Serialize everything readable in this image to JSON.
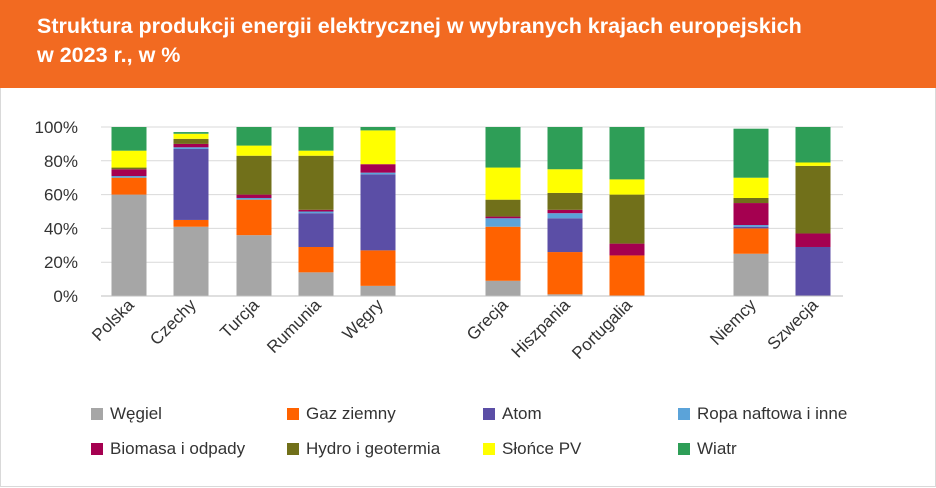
{
  "header": {
    "title_line1": "Struktura produkcji energii elektrycznej w wybranych krajach europejskich",
    "title_line2": "w 2023 r., w %"
  },
  "chart_data": {
    "type": "bar",
    "stacked": true,
    "title": "Struktura produkcji energii elektrycznej w wybranych krajach europejskich w 2023 r., w %",
    "xlabel": "",
    "ylabel": "",
    "ylim": [
      0,
      100
    ],
    "yticks": [
      "0%",
      "20%",
      "40%",
      "60%",
      "80%",
      "100%"
    ],
    "grid": true,
    "legend_position": "bottom",
    "categories": [
      "Polska",
      "Czechy",
      "Turcja",
      "Rumunia",
      "Węgry",
      "Grecja",
      "Hiszpania",
      "Portugalia",
      "Niemcy",
      "Szwecja"
    ],
    "series": [
      {
        "name": "Węgiel",
        "color": "#a6a6a6",
        "values": [
          60,
          41,
          36,
          14,
          6,
          9,
          1,
          0,
          25,
          0
        ]
      },
      {
        "name": "Gaz ziemny",
        "color": "#ff6200",
        "values": [
          10,
          4,
          21,
          15,
          21,
          32,
          25,
          24,
          15,
          0
        ]
      },
      {
        "name": "Atom",
        "color": "#5b4ea6",
        "values": [
          0,
          42,
          0,
          20,
          45,
          0,
          20,
          0,
          1,
          29
        ]
      },
      {
        "name": "Ropa naftowa i inne",
        "color": "#5ba3d9",
        "values": [
          1,
          1,
          1,
          1,
          1,
          5,
          3,
          0,
          1,
          0
        ]
      },
      {
        "name": "Biomasa i odpady",
        "color": "#a50050",
        "values": [
          4,
          2,
          2,
          1,
          5,
          1,
          2,
          7,
          13,
          8
        ]
      },
      {
        "name": "Hydro i geotermia",
        "color": "#71701a",
        "values": [
          1,
          3,
          23,
          32,
          0,
          10,
          10,
          29,
          3,
          40
        ]
      },
      {
        "name": "Słońce PV",
        "color": "#ffff00",
        "values": [
          10,
          3,
          6,
          3,
          20,
          19,
          14,
          9,
          12,
          2
        ]
      },
      {
        "name": "Wiatr",
        "color": "#2e9e57",
        "values": [
          14,
          1,
          11,
          14,
          2,
          24,
          25,
          31,
          29,
          21
        ]
      }
    ]
  },
  "legend": [
    {
      "label": "Węgiel",
      "color": "#a6a6a6"
    },
    {
      "label": "Gaz ziemny",
      "color": "#ff6200"
    },
    {
      "label": "Atom",
      "color": "#5b4ea6"
    },
    {
      "label": "Ropa naftowa i inne",
      "color": "#5ba3d9"
    },
    {
      "label": "Biomasa i odpady",
      "color": "#a50050"
    },
    {
      "label": "Hydro i geotermia",
      "color": "#71701a"
    },
    {
      "label": "Słońce PV",
      "color": "#ffff00"
    },
    {
      "label": "Wiatr",
      "color": "#2e9e57"
    }
  ]
}
